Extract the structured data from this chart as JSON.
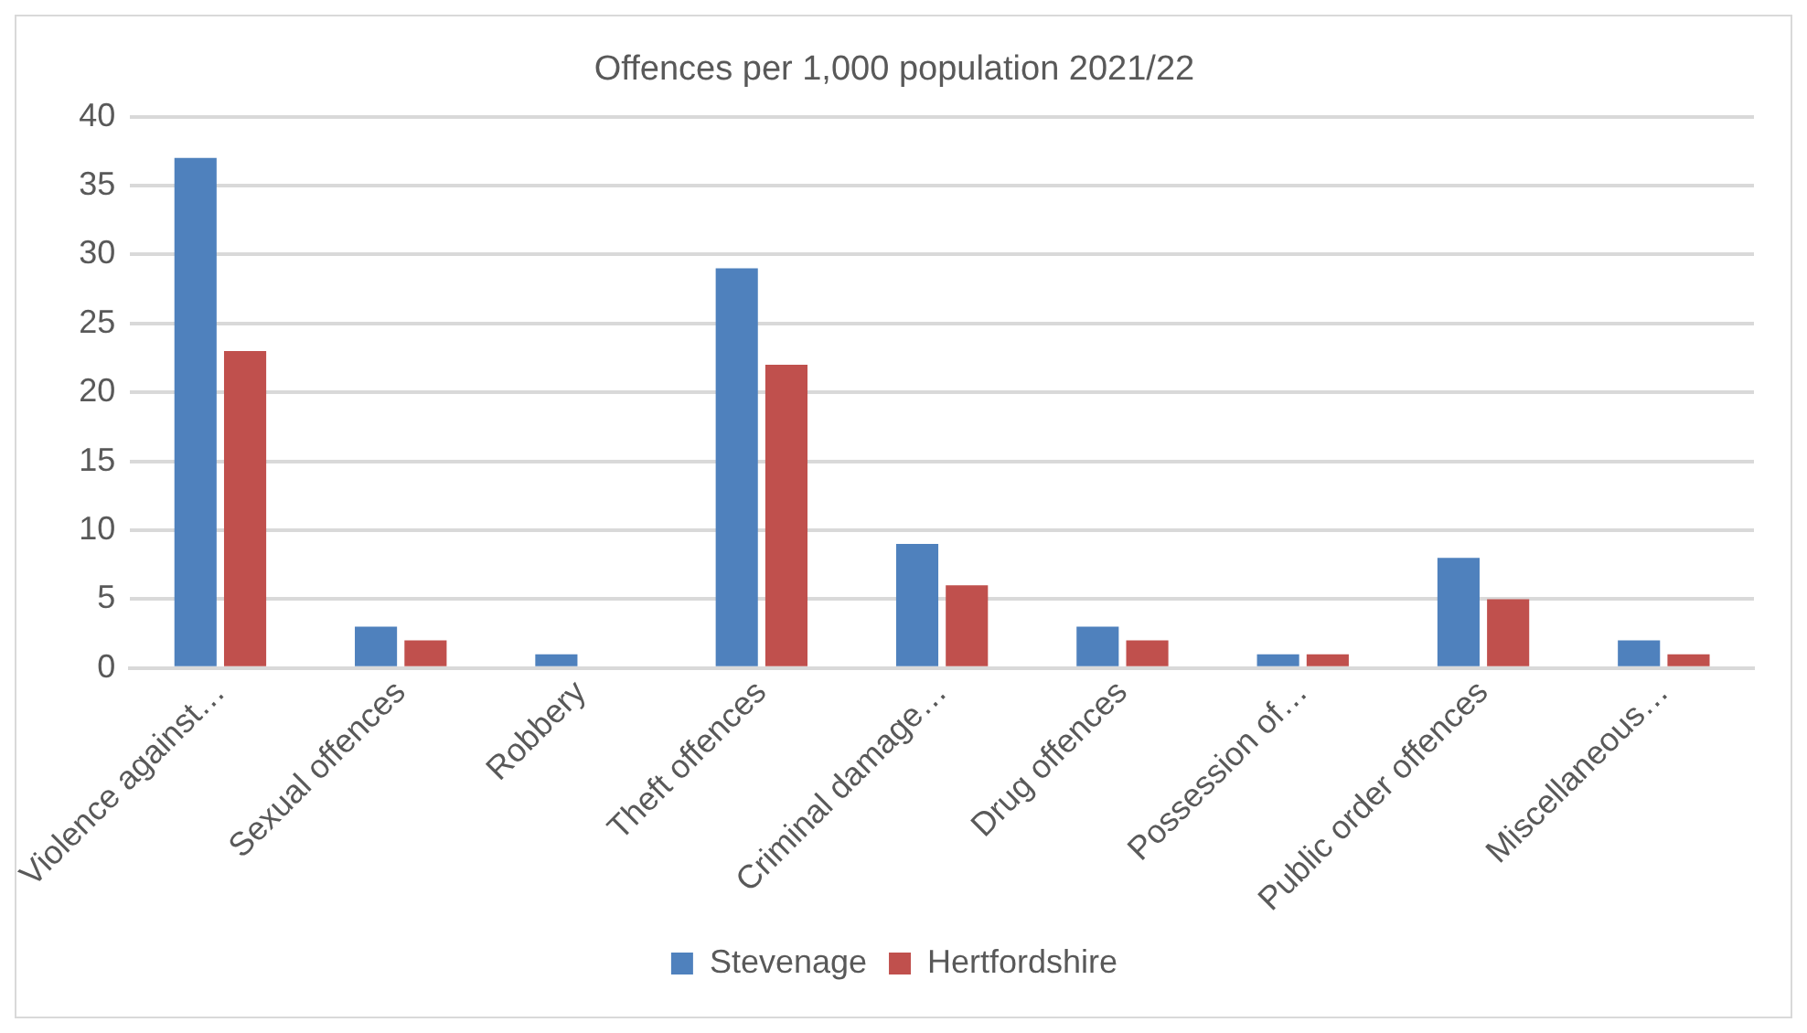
{
  "chart_data": {
    "type": "bar",
    "title": "Offences per 1,000 population 2021/22",
    "categories": [
      "Violence against…",
      "Sexual offences",
      "Robbery",
      "Theft offences",
      "Criminal damage…",
      "Drug offences",
      "Possession of…",
      "Public order offences",
      "Miscellaneous…"
    ],
    "series": [
      {
        "name": "Stevenage",
        "color": "#4f81bd",
        "values": [
          37,
          3,
          1,
          29,
          9,
          3,
          1,
          8,
          2
        ]
      },
      {
        "name": "Hertfordshire",
        "color": "#c0504d",
        "values": [
          23,
          2,
          0,
          22,
          6,
          2,
          1,
          5,
          1
        ]
      }
    ],
    "ylim": [
      0,
      40
    ],
    "yticks": [
      0,
      5,
      10,
      15,
      20,
      25,
      30,
      35,
      40
    ],
    "grid": "y",
    "legend": "bottom"
  }
}
